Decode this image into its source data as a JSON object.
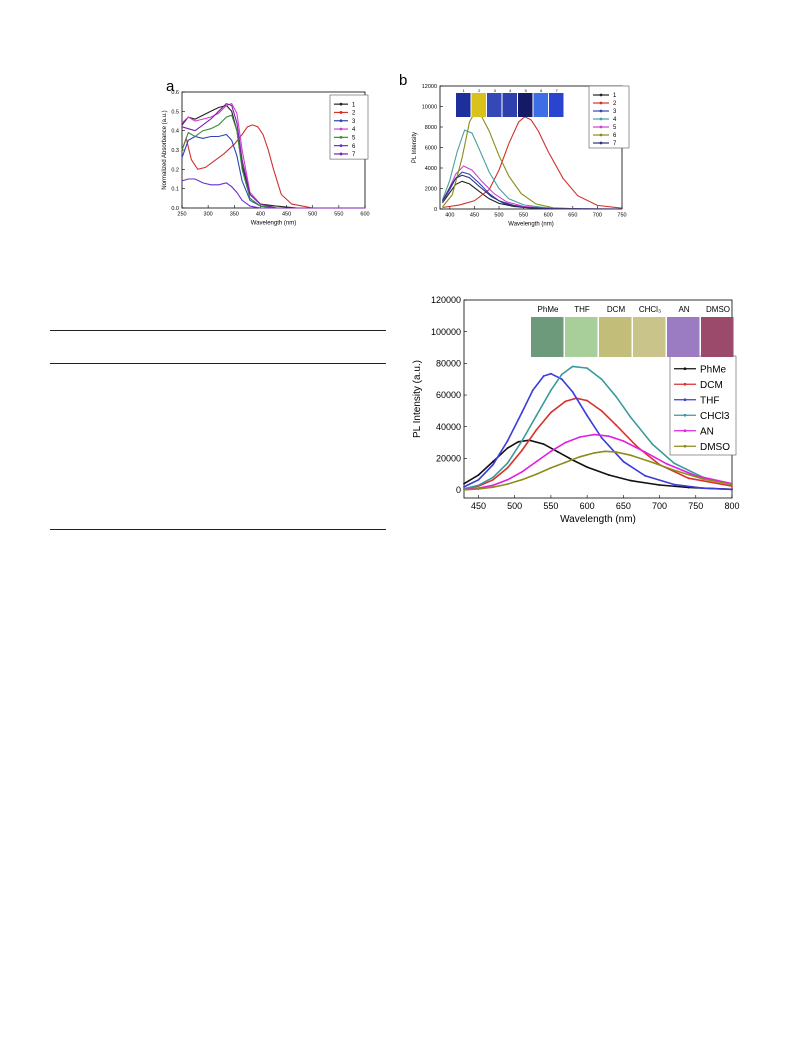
{
  "panel_a": {
    "letter": "a",
    "chart_data": {
      "type": "line",
      "xlabel": "Wavelength (nm)",
      "ylabel": "Normalized Absorbance (a.u.)",
      "xlim": [
        250,
        600
      ],
      "ylim": [
        0.0,
        0.6
      ],
      "xticks": [
        250,
        300,
        350,
        400,
        450,
        500,
        550,
        600
      ],
      "yticks": [
        0.0,
        0.1,
        0.2,
        0.3,
        0.4,
        0.5,
        0.6
      ],
      "legend_position": "top-right",
      "series": [
        {
          "name": "1",
          "color": "#222222",
          "x": [
            250,
            262,
            275,
            290,
            305,
            320,
            335,
            345,
            355,
            365,
            380,
            400,
            430,
            470,
            520,
            600
          ],
          "y": [
            0.43,
            0.47,
            0.46,
            0.48,
            0.5,
            0.52,
            0.53,
            0.5,
            0.4,
            0.22,
            0.07,
            0.02,
            0.01,
            0.0,
            0.0,
            0.0
          ]
        },
        {
          "name": "2",
          "color": "#d0312d",
          "x": [
            250,
            258,
            268,
            280,
            295,
            310,
            330,
            350,
            365,
            375,
            385,
            395,
            405,
            415,
            425,
            440,
            460,
            500,
            600
          ],
          "y": [
            0.3,
            0.36,
            0.25,
            0.2,
            0.21,
            0.24,
            0.28,
            0.33,
            0.38,
            0.42,
            0.43,
            0.42,
            0.38,
            0.3,
            0.2,
            0.07,
            0.02,
            0.0,
            0.0
          ]
        },
        {
          "name": "3",
          "color": "#2f45b8",
          "x": [
            250,
            262,
            275,
            290,
            305,
            320,
            335,
            345,
            355,
            365,
            380,
            400,
            430,
            470,
            600
          ],
          "y": [
            0.26,
            0.35,
            0.37,
            0.36,
            0.37,
            0.37,
            0.38,
            0.35,
            0.27,
            0.14,
            0.04,
            0.01,
            0.0,
            0.0,
            0.0
          ]
        },
        {
          "name": "4",
          "color": "#d040d0",
          "x": [
            250,
            262,
            275,
            290,
            305,
            320,
            335,
            345,
            355,
            365,
            380,
            400,
            430,
            470,
            600
          ],
          "y": [
            0.44,
            0.47,
            0.45,
            0.46,
            0.47,
            0.49,
            0.53,
            0.54,
            0.49,
            0.3,
            0.08,
            0.02,
            0.0,
            0.0,
            0.0
          ]
        },
        {
          "name": "5",
          "color": "#3a8c3a",
          "x": [
            250,
            262,
            275,
            290,
            305,
            320,
            335,
            345,
            355,
            365,
            380,
            400,
            430,
            470,
            600
          ],
          "y": [
            0.3,
            0.39,
            0.37,
            0.4,
            0.41,
            0.43,
            0.47,
            0.48,
            0.4,
            0.2,
            0.05,
            0.01,
            0.0,
            0.0,
            0.0
          ]
        },
        {
          "name": "6",
          "color": "#6a2fd0",
          "x": [
            250,
            262,
            275,
            290,
            305,
            320,
            335,
            345,
            355,
            365,
            380,
            400,
            430,
            470,
            600
          ],
          "y": [
            0.14,
            0.15,
            0.15,
            0.13,
            0.12,
            0.12,
            0.13,
            0.11,
            0.08,
            0.04,
            0.01,
            0.0,
            0.0,
            0.0,
            0.0
          ]
        },
        {
          "name": "7",
          "color": "#7a1fb0",
          "x": [
            250,
            262,
            275,
            290,
            305,
            320,
            335,
            345,
            355,
            365,
            380,
            400,
            430,
            470,
            600
          ],
          "y": [
            0.42,
            0.41,
            0.4,
            0.43,
            0.46,
            0.5,
            0.54,
            0.53,
            0.44,
            0.25,
            0.07,
            0.02,
            0.0,
            0.0,
            0.0
          ]
        }
      ]
    }
  },
  "panel_b": {
    "letter": "b",
    "photo_labels": [
      "1",
      "2",
      "3",
      "4",
      "5",
      "6",
      "7"
    ],
    "photo_colors": [
      "#1d2f9a",
      "#d9c21a",
      "#3548b8",
      "#2e3fae",
      "#141a66",
      "#3e6ee6",
      "#2b44d0"
    ],
    "chart_data": {
      "type": "line",
      "xlabel": "Wavelength (nm)",
      "ylabel": "PL Intensity",
      "xlim": [
        380,
        750
      ],
      "ylim": [
        0,
        12000
      ],
      "xticks": [
        400,
        450,
        500,
        550,
        600,
        650,
        700,
        750
      ],
      "yticks": [
        0,
        2000,
        4000,
        6000,
        8000,
        10000,
        12000
      ],
      "legend_position": "top-right",
      "series": [
        {
          "name": "1",
          "color": "#222222",
          "x": [
            385,
            400,
            412,
            425,
            440,
            460,
            480,
            500,
            530,
            570,
            620,
            700,
            750
          ],
          "y": [
            600,
            1600,
            2400,
            2700,
            2450,
            1700,
            1000,
            550,
            250,
            80,
            20,
            0,
            0
          ]
        },
        {
          "name": "2",
          "color": "#d0312d",
          "x": [
            385,
            420,
            450,
            480,
            500,
            520,
            540,
            552,
            565,
            580,
            600,
            630,
            660,
            700,
            750
          ],
          "y": [
            150,
            400,
            800,
            1900,
            3800,
            6400,
            8500,
            9000,
            8700,
            7600,
            5600,
            3000,
            1300,
            350,
            80
          ]
        },
        {
          "name": "3",
          "color": "#2f45b8",
          "x": [
            385,
            400,
            412,
            425,
            440,
            460,
            480,
            500,
            530,
            570,
            620,
            700,
            750
          ],
          "y": [
            700,
            1900,
            3000,
            3600,
            3400,
            2500,
            1500,
            800,
            350,
            120,
            30,
            0,
            0
          ]
        },
        {
          "name": "4",
          "color": "#4aa0a0",
          "x": [
            385,
            400,
            415,
            430,
            445,
            460,
            480,
            500,
            520,
            550,
            600,
            650,
            750
          ],
          "y": [
            900,
            2800,
            5600,
            7700,
            7400,
            5800,
            3600,
            2000,
            1000,
            400,
            100,
            20,
            0
          ]
        },
        {
          "name": "5",
          "color": "#d040d0",
          "x": [
            385,
            400,
            412,
            428,
            445,
            465,
            490,
            515,
            550,
            600,
            660,
            750
          ],
          "y": [
            700,
            2100,
            3400,
            4200,
            3800,
            2700,
            1500,
            700,
            250,
            60,
            10,
            0
          ]
        },
        {
          "name": "6",
          "color": "#8a8a1a",
          "x": [
            385,
            405,
            425,
            440,
            452,
            465,
            480,
            500,
            520,
            545,
            575,
            610,
            660,
            750
          ],
          "y": [
            200,
            1400,
            5000,
            8500,
            9500,
            9000,
            7600,
            5200,
            3200,
            1500,
            500,
            120,
            20,
            0
          ]
        },
        {
          "name": "7",
          "color": "#30307a",
          "x": [
            385,
            400,
            412,
            425,
            440,
            460,
            485,
            510,
            545,
            600,
            680,
            750
          ],
          "y": [
            800,
            2100,
            3000,
            3300,
            3050,
            2200,
            1200,
            550,
            180,
            40,
            5,
            0
          ]
        }
      ]
    }
  },
  "panel_c": {
    "photo_labels": [
      "PhMe",
      "THF",
      "DCM",
      "CHCl₃",
      "AN",
      "DMSO"
    ],
    "photo_colors": [
      "#6e9a7c",
      "#a8cf9a",
      "#c3bd7a",
      "#c9c48a",
      "#9b7cc2",
      "#9b4a6b"
    ],
    "chart_data": {
      "type": "line",
      "xlabel": "Wavelength (nm)",
      "ylabel": "PL Intensity (a.u.)",
      "xlim": [
        430,
        800
      ],
      "ylim": [
        -5000,
        120000
      ],
      "xticks": [
        450,
        500,
        550,
        600,
        650,
        700,
        750,
        800
      ],
      "yticks": [
        0,
        20000,
        40000,
        60000,
        80000,
        100000,
        120000
      ],
      "legend_position": "right",
      "series": [
        {
          "name": "PhMe",
          "color": "#111111",
          "x": [
            430,
            450,
            470,
            490,
            505,
            520,
            540,
            560,
            580,
            600,
            630,
            660,
            700,
            740,
            800
          ],
          "y": [
            4000,
            9500,
            18000,
            26500,
            30500,
            31500,
            29000,
            24000,
            19000,
            14500,
            9500,
            6000,
            3200,
            1600,
            500
          ]
        },
        {
          "name": "DCM",
          "color": "#d9312d",
          "x": [
            430,
            450,
            470,
            490,
            510,
            530,
            550,
            570,
            585,
            600,
            620,
            640,
            670,
            700,
            740,
            800
          ],
          "y": [
            700,
            2500,
            6500,
            14000,
            25000,
            38000,
            49000,
            56000,
            58000,
            56500,
            50000,
            41000,
            27000,
            16000,
            7500,
            2500
          ]
        },
        {
          "name": "THF",
          "color": "#3b3bd9",
          "x": [
            430,
            450,
            470,
            490,
            510,
            525,
            540,
            550,
            565,
            580,
            600,
            620,
            650,
            680,
            720,
            760,
            800
          ],
          "y": [
            2000,
            6500,
            16000,
            31000,
            49000,
            63000,
            72000,
            73500,
            70000,
            62000,
            47000,
            33000,
            18000,
            9000,
            3500,
            1200,
            400
          ]
        },
        {
          "name": "CHCl3",
          "color": "#3a9a9a",
          "x": [
            430,
            450,
            470,
            490,
            510,
            530,
            550,
            565,
            580,
            600,
            620,
            640,
            660,
            690,
            720,
            760,
            800
          ],
          "y": [
            800,
            3000,
            8000,
            17000,
            31000,
            47000,
            63000,
            73000,
            78000,
            77000,
            70000,
            59000,
            46000,
            29000,
            17000,
            8000,
            3500
          ]
        },
        {
          "name": "AN",
          "color": "#e020e0",
          "x": [
            430,
            450,
            470,
            490,
            510,
            530,
            550,
            570,
            590,
            610,
            630,
            650,
            680,
            710,
            750,
            800
          ],
          "y": [
            300,
            1200,
            3000,
            6500,
            11500,
            18000,
            24500,
            30000,
            33500,
            35000,
            34000,
            31000,
            24000,
            16500,
            9000,
            4000
          ]
        },
        {
          "name": "DMSO",
          "color": "#8c8c1a",
          "x": [
            430,
            450,
            470,
            490,
            510,
            530,
            550,
            570,
            590,
            610,
            625,
            640,
            660,
            690,
            720,
            760,
            800
          ],
          "y": [
            200,
            700,
            1800,
            3800,
            6500,
            10000,
            14000,
            17500,
            21000,
            23500,
            24500,
            24000,
            22000,
            17500,
            12500,
            7000,
            3500
          ]
        }
      ]
    }
  },
  "table": {
    "note": ""
  }
}
